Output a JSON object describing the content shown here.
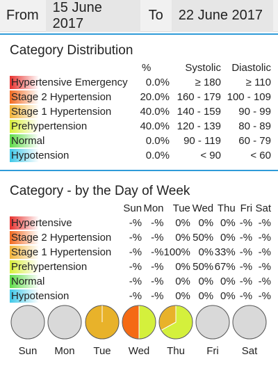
{
  "date_range": {
    "from_label": "From",
    "from_value": "15 June 2017",
    "to_label": "To",
    "to_value": "22 June 2017"
  },
  "distribution": {
    "title": "Category Distribution",
    "headers": {
      "pct": "%",
      "systolic": "Systolic",
      "diastolic": "Diastolic"
    },
    "rows": [
      {
        "label": "Hypertensive Emergency",
        "pct": "0.0%",
        "systolic": "≥ 180",
        "diastolic": "≥ 110",
        "color": "#e8322f"
      },
      {
        "label": "Stage 2 Hypertension",
        "pct": "20.0%",
        "systolic": "160 - 179",
        "diastolic": "100 - 109",
        "color": "#f26a21"
      },
      {
        "label": "Stage 1 Hypertension",
        "pct": "40.0%",
        "systolic": "140 - 159",
        "diastolic": "90 - 99",
        "color": "#f2b43a"
      },
      {
        "label": "Prehypertension",
        "pct": "40.0%",
        "systolic": "120 - 139",
        "diastolic": "80 - 89",
        "color": "#d8ef3a"
      },
      {
        "label": "Normal",
        "pct": "0.0%",
        "systolic": "90 - 119",
        "diastolic": "60 - 79",
        "color": "#5fdc4a"
      },
      {
        "label": "Hypotension",
        "pct": "0.0%",
        "systolic": "< 90",
        "diastolic": "< 60",
        "color": "#3ec8e8"
      }
    ]
  },
  "by_day": {
    "title": "Category - by the Day of Week",
    "days": [
      "Sun",
      "Mon",
      "Tue",
      "Wed",
      "Thu",
      "Fri",
      "Sat"
    ],
    "rows": [
      {
        "label": "Hypertensive",
        "values": [
          "-%",
          "-%",
          "0%",
          "0%",
          "0%",
          "-%",
          "-%"
        ],
        "color": "#e8322f"
      },
      {
        "label": "Stage 2 Hypertension",
        "values": [
          "-%",
          "-%",
          "0%",
          "50%",
          "0%",
          "-%",
          "-%"
        ],
        "color": "#f26a21"
      },
      {
        "label": "Stage 1 Hypertension",
        "values": [
          "-%",
          "-%",
          "100%",
          "0%",
          "33%",
          "-%",
          "-%"
        ],
        "color": "#f2b43a"
      },
      {
        "label": "Prehypertension",
        "values": [
          "-%",
          "-%",
          "0%",
          "50%",
          "67%",
          "-%",
          "-%"
        ],
        "color": "#d8ef3a"
      },
      {
        "label": "Normal",
        "values": [
          "-%",
          "-%",
          "0%",
          "0%",
          "0%",
          "-%",
          "-%"
        ],
        "color": "#5fdc4a"
      },
      {
        "label": "Hypotension",
        "values": [
          "-%",
          "-%",
          "0%",
          "0%",
          "0%",
          "-%",
          "-%"
        ],
        "color": "#3ec8e8"
      }
    ]
  },
  "pies": [
    {
      "day": "Sun",
      "slices": []
    },
    {
      "day": "Mon",
      "slices": []
    },
    {
      "day": "Tue",
      "slices": [
        {
          "category": "Stage 1 Hypertension",
          "fraction": 1.0,
          "color": "#e8b22a"
        }
      ]
    },
    {
      "day": "Wed",
      "slices": [
        {
          "category": "Prehypertension",
          "fraction": 0.5,
          "color": "#d4f03c"
        },
        {
          "category": "Stage 2 Hypertension",
          "fraction": 0.5,
          "color": "#f56a14"
        }
      ]
    },
    {
      "day": "Thu",
      "slices": [
        {
          "category": "Prehypertension",
          "fraction": 0.67,
          "color": "#d4f03c"
        },
        {
          "category": "Stage 1 Hypertension",
          "fraction": 0.33,
          "color": "#e8b22a"
        }
      ]
    },
    {
      "day": "Fri",
      "slices": []
    },
    {
      "day": "Sat",
      "slices": []
    }
  ],
  "colors": {
    "accent_divider": "#2f9bd8",
    "empty_pie": "#d9d9d9",
    "pie_stroke": "#555555"
  }
}
